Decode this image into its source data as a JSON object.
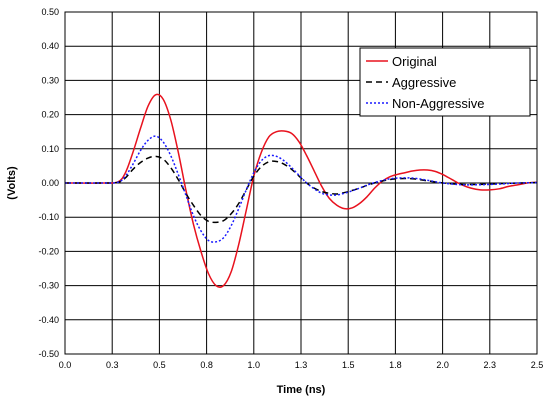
{
  "chart_data": {
    "type": "line",
    "title": "",
    "xlabel": "Time (ns)",
    "ylabel": "(Volts)",
    "xlim": [
      0,
      2.5
    ],
    "ylim": [
      -0.5,
      0.5
    ],
    "x_ticks": [
      "0.0",
      "0.3",
      "0.5",
      "0.8",
      "1.0",
      "1.3",
      "1.5",
      "1.8",
      "2.0",
      "2.3",
      "2.5"
    ],
    "y_ticks": [
      "0.50",
      "0.40",
      "0.30",
      "0.20",
      "0.10",
      "0.00",
      "-0.10",
      "-0.20",
      "-0.30",
      "-0.40",
      "-0.50"
    ],
    "grid": true,
    "legend_position": "top-right",
    "series": [
      {
        "name": "Original",
        "color": "#e8121e",
        "dash": "solid",
        "x": [
          0,
          0.2,
          0.28,
          0.32,
          0.36,
          0.4,
          0.44,
          0.48,
          0.52,
          0.56,
          0.6,
          0.64,
          0.68,
          0.72,
          0.76,
          0.8,
          0.84,
          0.88,
          0.92,
          0.96,
          1.0,
          1.04,
          1.08,
          1.12,
          1.16,
          1.2,
          1.24,
          1.28,
          1.32,
          1.36,
          1.4,
          1.44,
          1.48,
          1.52,
          1.56,
          1.6,
          1.64,
          1.68,
          1.72,
          1.76,
          1.8,
          1.84,
          1.88,
          1.92,
          1.96,
          2.0,
          2.05,
          2.1,
          2.15,
          2.2,
          2.25,
          2.3,
          2.35,
          2.4,
          2.45,
          2.5
        ],
        "y": [
          0,
          0,
          0.003,
          0.03,
          0.09,
          0.16,
          0.225,
          0.258,
          0.245,
          0.185,
          0.09,
          -0.02,
          -0.12,
          -0.2,
          -0.265,
          -0.3,
          -0.3,
          -0.26,
          -0.18,
          -0.08,
          0.02,
          0.09,
          0.135,
          0.15,
          0.152,
          0.145,
          0.12,
          0.08,
          0.035,
          -0.01,
          -0.045,
          -0.065,
          -0.075,
          -0.073,
          -0.06,
          -0.04,
          -0.015,
          0.005,
          0.018,
          0.025,
          0.03,
          0.035,
          0.038,
          0.038,
          0.034,
          0.025,
          0.01,
          -0.005,
          -0.015,
          -0.02,
          -0.02,
          -0.017,
          -0.01,
          -0.005,
          0,
          0.002
        ]
      },
      {
        "name": "Aggressive",
        "color": "#000000",
        "dash": "dashed",
        "x": [
          0,
          0.2,
          0.28,
          0.32,
          0.36,
          0.4,
          0.44,
          0.48,
          0.52,
          0.56,
          0.6,
          0.64,
          0.68,
          0.72,
          0.76,
          0.8,
          0.84,
          0.88,
          0.92,
          0.96,
          1.0,
          1.04,
          1.08,
          1.12,
          1.16,
          1.2,
          1.24,
          1.28,
          1.32,
          1.36,
          1.4,
          1.44,
          1.48,
          1.52,
          1.56,
          1.6,
          1.65,
          1.7,
          1.75,
          1.8,
          1.85,
          1.9,
          1.95,
          2.0,
          2.1,
          2.2,
          2.3,
          2.4,
          2.5
        ],
        "y": [
          0,
          0,
          0.002,
          0.015,
          0.04,
          0.06,
          0.073,
          0.078,
          0.07,
          0.045,
          0.01,
          -0.03,
          -0.065,
          -0.095,
          -0.112,
          -0.115,
          -0.11,
          -0.09,
          -0.06,
          -0.02,
          0.02,
          0.048,
          0.062,
          0.063,
          0.055,
          0.04,
          0.02,
          0.0,
          -0.015,
          -0.025,
          -0.03,
          -0.032,
          -0.028,
          -0.022,
          -0.015,
          -0.007,
          0.002,
          0.008,
          0.012,
          0.013,
          0.012,
          0.008,
          0.004,
          0.0,
          -0.004,
          -0.004,
          -0.002,
          0.0,
          0.001
        ]
      },
      {
        "name": "Non-Aggressive",
        "color": "#1a1aff",
        "dash": "dotted",
        "x": [
          0,
          0.2,
          0.28,
          0.32,
          0.36,
          0.4,
          0.44,
          0.48,
          0.52,
          0.56,
          0.6,
          0.64,
          0.68,
          0.72,
          0.76,
          0.8,
          0.84,
          0.88,
          0.92,
          0.96,
          1.0,
          1.04,
          1.08,
          1.12,
          1.16,
          1.2,
          1.24,
          1.28,
          1.32,
          1.36,
          1.4,
          1.44,
          1.48,
          1.52,
          1.56,
          1.6,
          1.65,
          1.7,
          1.75,
          1.8,
          1.85,
          1.9,
          1.95,
          2.0,
          2.1,
          2.2,
          2.3,
          2.4,
          2.5
        ],
        "y": [
          0,
          0,
          0.002,
          0.02,
          0.055,
          0.095,
          0.125,
          0.137,
          0.12,
          0.08,
          0.025,
          -0.035,
          -0.095,
          -0.14,
          -0.168,
          -0.172,
          -0.16,
          -0.125,
          -0.075,
          -0.02,
          0.03,
          0.065,
          0.08,
          0.078,
          0.065,
          0.045,
          0.022,
          0.0,
          -0.017,
          -0.03,
          -0.035,
          -0.035,
          -0.03,
          -0.023,
          -0.015,
          -0.006,
          0.003,
          0.01,
          0.014,
          0.015,
          0.014,
          0.01,
          0.005,
          0.0,
          -0.005,
          -0.005,
          -0.003,
          0.0,
          0.001
        ]
      }
    ]
  }
}
